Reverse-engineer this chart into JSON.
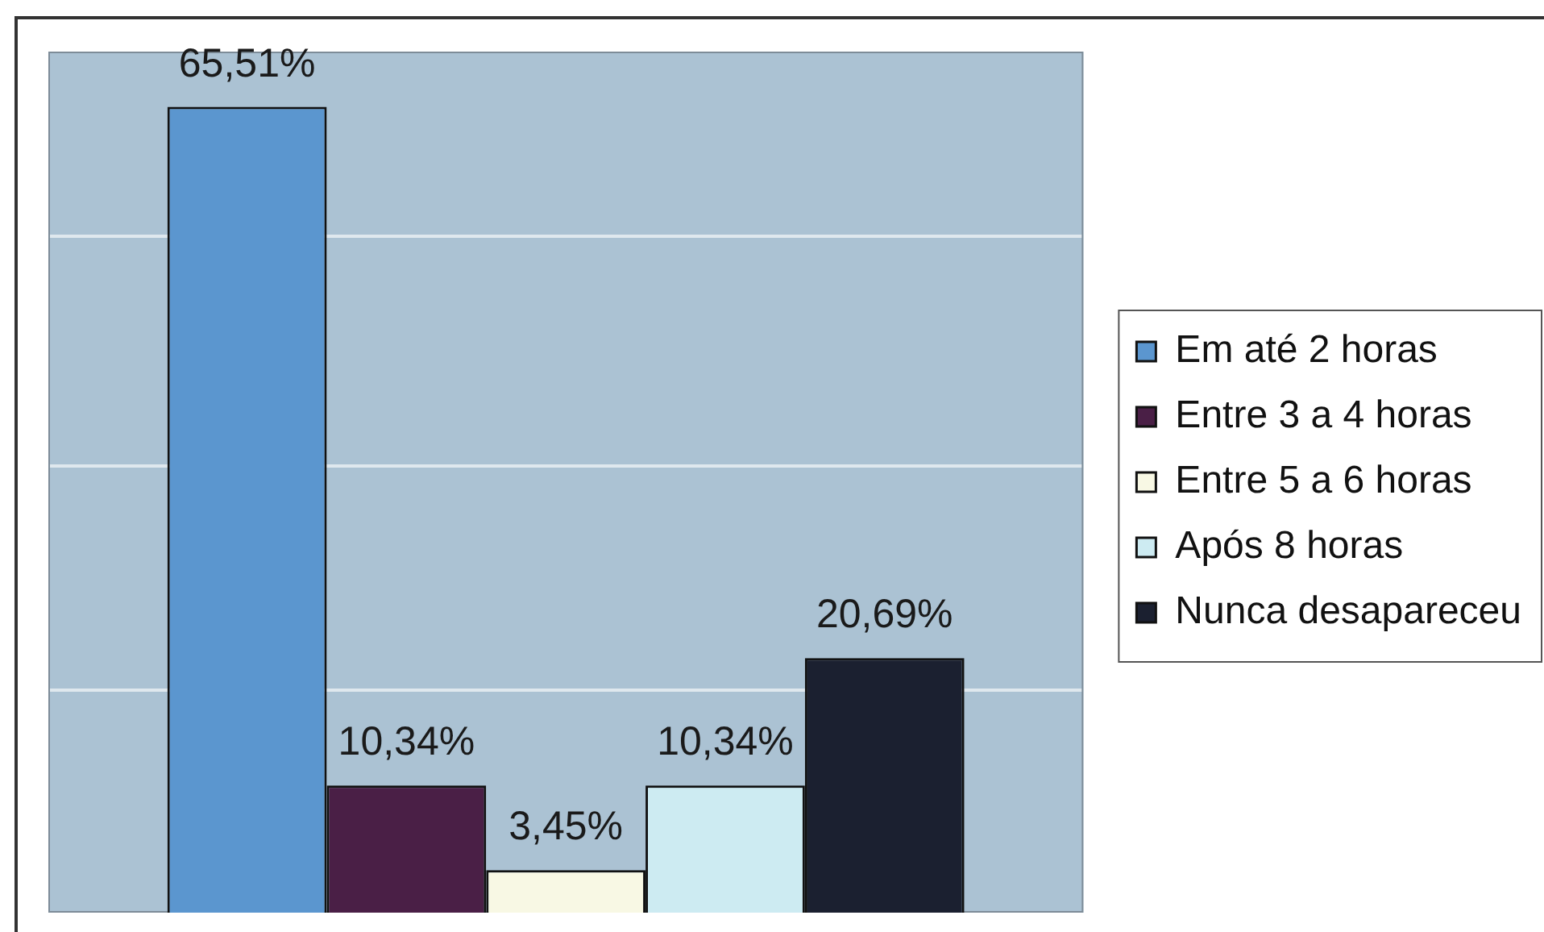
{
  "chart_data": {
    "type": "bar",
    "categories": [
      null
    ],
    "series": [
      {
        "name": "Em até 2 horas",
        "color": "#5b96cf",
        "values": [
          65.51
        ],
        "value_labels": [
          "65,51%"
        ]
      },
      {
        "name": "Entre 3 a 4 horas",
        "color": "#4a1f46",
        "values": [
          10.34
        ],
        "value_labels": [
          "10,34%"
        ]
      },
      {
        "name": "Entre 5 a 6 horas",
        "color": "#f8f8e4",
        "values": [
          3.45
        ],
        "value_labels": [
          "3,45%"
        ]
      },
      {
        "name": "Após 8 horas",
        "color": "#cdebf2",
        "values": [
          10.34
        ],
        "value_labels": [
          "10,34%"
        ]
      },
      {
        "name": "Nunca desapareceu",
        "color": "#1b2030",
        "values": [
          20.69
        ],
        "value_labels": [
          "20,69%"
        ]
      }
    ],
    "ylim": [
      0,
      70
    ],
    "yticks": [
      {
        "value": 18.1,
        "label": null
      },
      {
        "value": 36.3,
        "label": null
      },
      {
        "value": 55,
        "label": null
      }
    ],
    "grid": "y",
    "legend": "right",
    "tick_labels": false
  }
}
